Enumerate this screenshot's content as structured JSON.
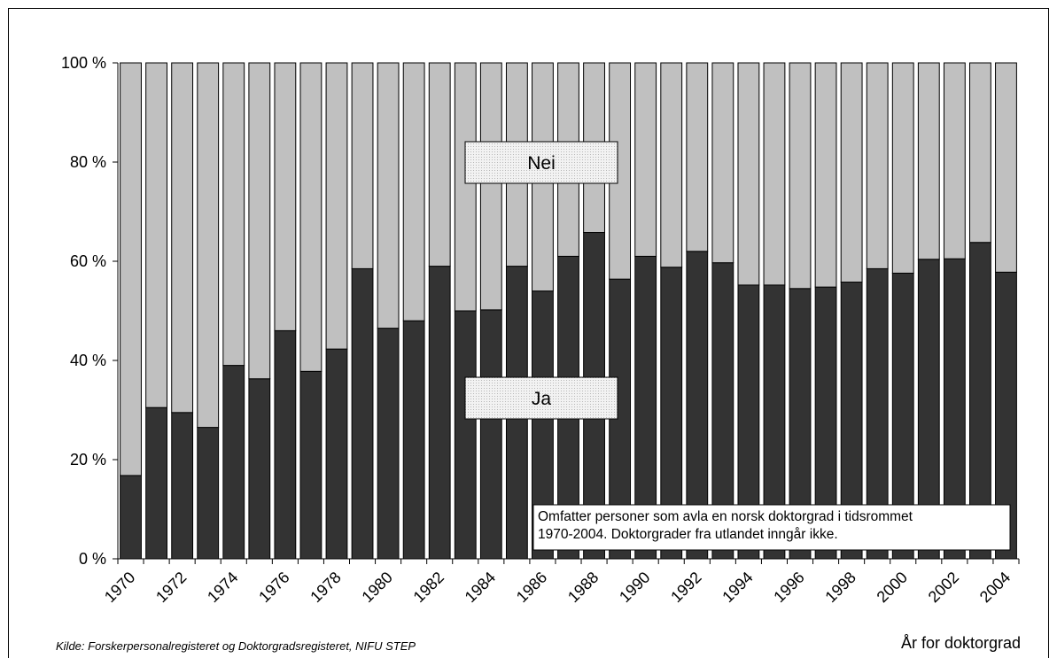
{
  "chart_data": {
    "type": "stacked_bar",
    "categories": [
      "1970",
      null,
      "1972",
      null,
      "1974",
      null,
      "1976",
      null,
      "1978",
      null,
      "1980",
      null,
      "1982",
      null,
      "1984",
      null,
      "1986",
      null,
      "1988",
      null,
      "1990",
      null,
      "1992",
      null,
      "1994",
      null,
      "1996",
      null,
      "1998",
      null,
      "2000",
      null,
      "2002",
      null,
      "2004"
    ],
    "series": [
      {
        "name": "Ja",
        "color": "#333333",
        "values": [
          16.8,
          30.5,
          29.5,
          26.5,
          39,
          36.3,
          46,
          37.8,
          42.3,
          58.5,
          46.5,
          48,
          59,
          50,
          50.2,
          59,
          54,
          61,
          65.8,
          56.4,
          61,
          58.8,
          62,
          59.7,
          55.2,
          55.2,
          54.5,
          54.8,
          55.8,
          58.5,
          57.6,
          60.4,
          60.5,
          63.8,
          57.8
        ]
      },
      {
        "name": "Nei",
        "color": "#c0c0c0",
        "values": [
          83.2,
          69.5,
          70.5,
          73.5,
          61,
          63.7,
          54,
          62.2,
          57.7,
          41.5,
          53.5,
          52,
          41,
          50,
          49.8,
          41,
          46,
          39,
          34.2,
          43.6,
          39,
          41.2,
          38,
          40.3,
          44.8,
          44.8,
          45.5,
          45.2,
          44.2,
          41.5,
          42.4,
          39.6,
          39.5,
          36.2,
          42.2
        ]
      }
    ],
    "ylim": [
      0,
      100
    ],
    "yticks": [
      {
        "value": 0,
        "label": "0 %"
      },
      {
        "value": 20,
        "label": "20 %"
      },
      {
        "value": 40,
        "label": "40 %"
      },
      {
        "value": 60,
        "label": "60 %"
      },
      {
        "value": 80,
        "label": "80 %"
      },
      {
        "value": 100,
        "label": "100 %"
      }
    ],
    "annotation": [
      "Omfatter personer som avla en norsk doktorgrad i tidsrommet",
      "1970-2004. Doktorgrader fra utlandet inngår ikke."
    ],
    "source": "Kilde: Forskerpersonalregisteret og Doktorgradsregisteret, NIFU STEP",
    "x_label": "År for doktorgrad"
  }
}
